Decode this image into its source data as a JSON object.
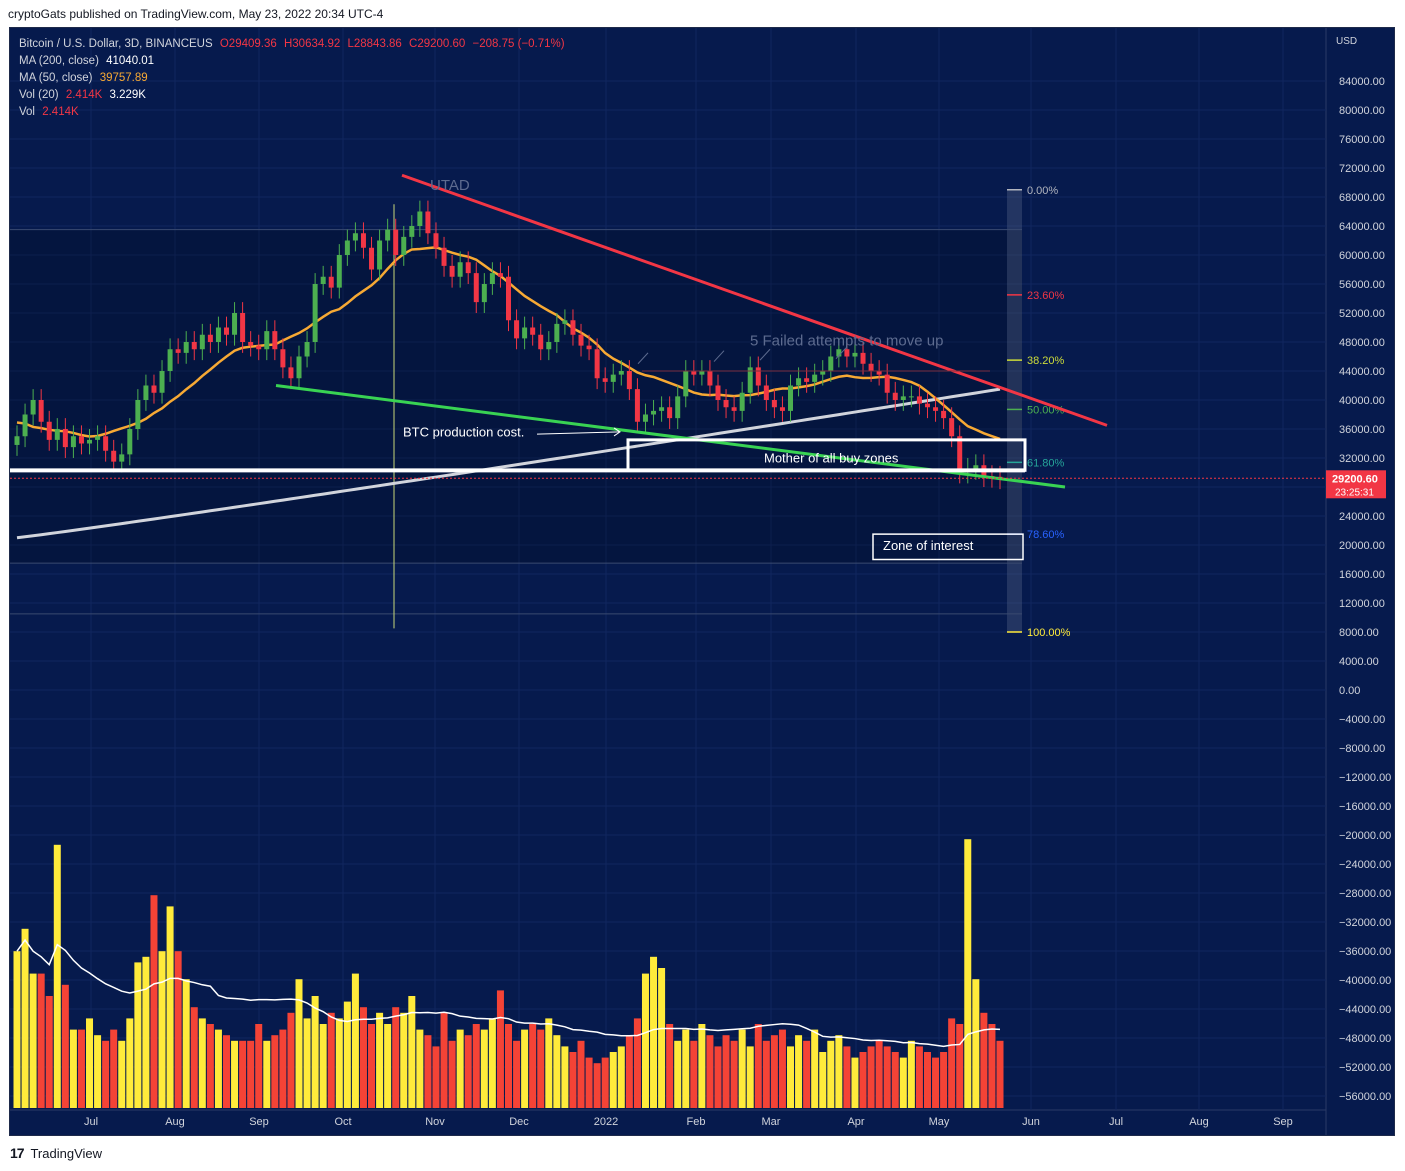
{
  "header": {
    "publisher": "cryptoGats published on TradingView.com, May 23, 2022 20:34 UTC-4"
  },
  "legend": {
    "symbol": "Bitcoin / U.S. Dollar, 3D, BINANCEUS",
    "ohlc": {
      "o": "O29409.36",
      "h": "H30634.92",
      "l": "L28843.86",
      "c": "C29200.60",
      "chg": "−208.75 (−0.71%)"
    },
    "ma200": {
      "label": "MA (200, close)",
      "value": "41040.01"
    },
    "ma50": {
      "label": "MA (50, close)",
      "value": "39757.89"
    },
    "vol20": {
      "label": "Vol (20)",
      "v1": "2.414K",
      "v2": "3.229K"
    },
    "vol": {
      "label": "Vol",
      "v1": "2.414K"
    }
  },
  "footer": {
    "brand_icon": "17",
    "brand": "TradingView"
  },
  "colors": {
    "background": "#061a4d",
    "up": "#4caf50",
    "down": "#f23645",
    "ma50": "#f7a934",
    "ma200": "#d1d4dc",
    "volume_up": "#ffeb3b",
    "volume_down": "#f44336",
    "trend_red": "#f23645",
    "trend_green": "#39d353"
  },
  "chart_data": {
    "type": "candlestick",
    "currency": "USD",
    "last_price": "29200.60",
    "countdown": "23:25:31",
    "y_axis_ticks": [
      "84000.00",
      "80000.00",
      "76000.00",
      "72000.00",
      "68000.00",
      "64000.00",
      "60000.00",
      "56000.00",
      "52000.00",
      "48000.00",
      "44000.00",
      "40000.00",
      "36000.00",
      "32000.00",
      "28000.00",
      "24000.00",
      "20000.00",
      "16000.00",
      "12000.00",
      "8000.00",
      "4000.00",
      "0.00",
      "−4000.00",
      "−8000.00",
      "−12000.00",
      "−16000.00",
      "−20000.00",
      "−24000.00",
      "−28000.00",
      "−32000.00",
      "−36000.00",
      "−40000.00",
      "−44000.00",
      "−48000.00",
      "−52000.00",
      "−56000.00"
    ],
    "x_axis_ticks": [
      "Jul",
      "Aug",
      "Sep",
      "Oct",
      "Nov",
      "Dec",
      "2022",
      "Feb",
      "Mar",
      "Apr",
      "May",
      "Jun",
      "Jul",
      "Aug",
      "Sep"
    ],
    "ylim": [
      -58000,
      88000
    ],
    "close_approx": [
      35000,
      38000,
      40000,
      37000,
      34500,
      36000,
      33500,
      35000,
      34000,
      34500,
      35000,
      33000,
      31500,
      32500,
      36000,
      40000,
      42000,
      41000,
      44000,
      47000,
      46500,
      48000,
      47000,
      49000,
      48000,
      50000,
      49000,
      52000,
      48000,
      47500,
      47000,
      49500,
      47000,
      44500,
      43000,
      46000,
      48000,
      56000,
      57000,
      55500,
      60000,
      62000,
      63000,
      61000,
      58000,
      62000,
      63500,
      60000,
      62500,
      64000,
      66000,
      63000,
      61000,
      58500,
      57000,
      59000,
      57500,
      53500,
      56000,
      57500,
      57000,
      51000,
      48500,
      50000,
      49000,
      47000,
      48000,
      50500,
      51000,
      49000,
      47500,
      47000,
      43000,
      42500,
      43500,
      44000,
      41500,
      37000,
      38000,
      38500,
      39000,
      37500,
      40500,
      44000,
      43500,
      44000,
      42000,
      40000,
      39000,
      38500,
      41000,
      44500,
      42000,
      40000,
      39000,
      38500,
      42000,
      43000,
      42500,
      43500,
      44000,
      46000,
      47000,
      46000,
      46500,
      45000,
      44000,
      43500,
      41000,
      40000,
      40500,
      40500,
      39500,
      39000,
      38500,
      37500,
      35000,
      30000,
      30500,
      31000,
      29500,
      29409,
      29200
    ],
    "volume_approx": [
      2.8,
      3.2,
      2.4,
      2.4,
      2.0,
      4.7,
      2.2,
      1.4,
      1.4,
      1.6,
      1.3,
      1.2,
      1.4,
      1.2,
      1.6,
      2.6,
      2.7,
      3.8,
      2.8,
      3.6,
      2.8,
      2.3,
      1.8,
      1.6,
      1.5,
      1.4,
      1.3,
      1.2,
      1.2,
      1.2,
      1.5,
      1.2,
      1.3,
      1.4,
      1.7,
      2.3,
      1.6,
      2.0,
      1.5,
      1.7,
      1.6,
      1.9,
      2.4,
      1.8,
      1.5,
      1.7,
      1.5,
      1.8,
      1.7,
      2.0,
      1.4,
      1.3,
      1.1,
      1.7,
      1.2,
      1.4,
      1.3,
      1.5,
      1.4,
      1.6,
      2.1,
      1.5,
      1.2,
      1.4,
      1.5,
      1.4,
      1.6,
      1.3,
      1.1,
      1.0,
      1.2,
      0.9,
      0.8,
      0.9,
      1.0,
      1.1,
      1.3,
      1.6,
      2.4,
      2.7,
      2.5,
      1.5,
      1.2,
      1.4,
      1.2,
      1.5,
      1.3,
      1.1,
      1.3,
      1.2,
      1.4,
      1.1,
      1.5,
      1.2,
      1.3,
      1.4,
      1.1,
      1.3,
      1.2,
      1.4,
      1.0,
      1.2,
      1.3,
      1.1,
      0.9,
      1.0,
      1.1,
      1.2,
      1.1,
      1.0,
      0.9,
      1.2,
      1.1,
      1.0,
      0.9,
      1.0,
      1.6,
      1.5,
      4.8,
      2.3,
      1.7,
      1.5,
      1.2
    ],
    "fibonacci": {
      "levels": [
        {
          "label": "0.00%",
          "price": 69000,
          "color": "#b2b5be"
        },
        {
          "label": "23.60%",
          "price": 54500,
          "color": "#f23645"
        },
        {
          "label": "38.20%",
          "price": 45500,
          "color": "#cddc39"
        },
        {
          "label": "50.00%",
          "price": 38700,
          "color": "#4caf50"
        },
        {
          "label": "61.80%",
          "price": 31400,
          "color": "#26a69a"
        },
        {
          "label": "78.60%",
          "price": 21500,
          "color": "#2962ff"
        },
        {
          "label": "100.00%",
          "price": 8000,
          "color": "#ffeb3b"
        }
      ]
    },
    "annotations": {
      "utad": "UTAD",
      "failed": "5 Failed attempts to move up",
      "btc_cost": "BTC production cost.",
      "buy_zone": "Mother of all buy zones",
      "zone_interest": "Zone of interest"
    }
  }
}
